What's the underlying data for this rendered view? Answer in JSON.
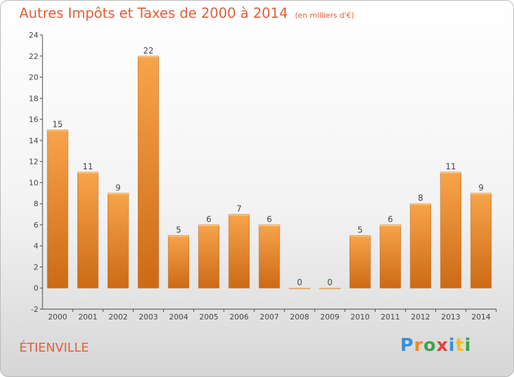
{
  "title": "Autres Impôts et Taxes de 2000 à 2014",
  "unit": "(en milliers d'€)",
  "commune": "ÉTIENVILLE",
  "logo": {
    "text": "Proxiti",
    "letters": [
      {
        "ch": "P",
        "color": "#3a8fd6"
      },
      {
        "ch": "r",
        "color": "#f08a24"
      },
      {
        "ch": "o",
        "color": "#3ea34a"
      },
      {
        "ch": "x",
        "color": "#e0413a"
      },
      {
        "ch": "i",
        "color": "#3a8fd6"
      },
      {
        "ch": "t",
        "color": "#f0c020"
      },
      {
        "ch": "i",
        "color": "#3ea34a"
      }
    ]
  },
  "colors": {
    "title": "#e0603a",
    "bar_light": "#f7a44a",
    "bar_dark": "#cc6a16"
  },
  "chart_data": {
    "type": "bar",
    "title": "Autres Impôts et Taxes de 2000 à 2014",
    "xlabel": "",
    "ylabel": "",
    "categories": [
      "2000",
      "2001",
      "2002",
      "2003",
      "2004",
      "2005",
      "2006",
      "2007",
      "2008",
      "2009",
      "2010",
      "2011",
      "2012",
      "2013",
      "2014"
    ],
    "values": [
      15,
      11,
      9,
      22,
      5,
      6,
      7,
      6,
      0,
      0,
      5,
      6,
      8,
      11,
      9
    ],
    "ylim": [
      -2,
      24
    ],
    "yticks": [
      -2,
      0,
      2,
      4,
      6,
      8,
      10,
      12,
      14,
      16,
      18,
      20,
      22,
      24
    ],
    "grid": false,
    "legend": "none"
  }
}
